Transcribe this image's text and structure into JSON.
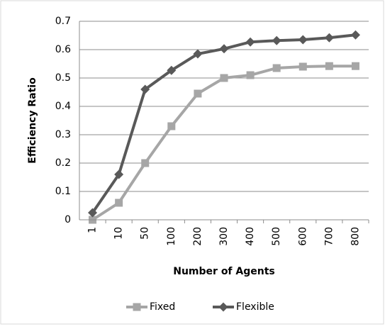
{
  "chart_data": {
    "type": "line",
    "x_label": "Number of Agents",
    "y_label": "Efficiency Ratio",
    "categories": [
      "1",
      "10",
      "50",
      "100",
      "200",
      "300",
      "400",
      "500",
      "600",
      "700",
      "800"
    ],
    "series": [
      {
        "name": "Fixed",
        "color": "#a6a6a6",
        "marker": "square",
        "values": [
          0,
          0.06,
          0.2,
          0.33,
          0.445,
          0.5,
          0.51,
          0.535,
          0.54,
          0.542,
          0.542
        ]
      },
      {
        "name": "Flexible",
        "color": "#595959",
        "marker": "diamond",
        "values": [
          0.025,
          0.16,
          0.46,
          0.527,
          0.585,
          0.603,
          0.627,
          0.632,
          0.635,
          0.642,
          0.652
        ]
      }
    ],
    "ylim": [
      0,
      0.7
    ],
    "yticks": [
      0,
      0.1,
      0.2,
      0.3,
      0.4,
      0.5,
      0.6,
      0.7
    ],
    "grid": true,
    "legend": "bottom"
  }
}
